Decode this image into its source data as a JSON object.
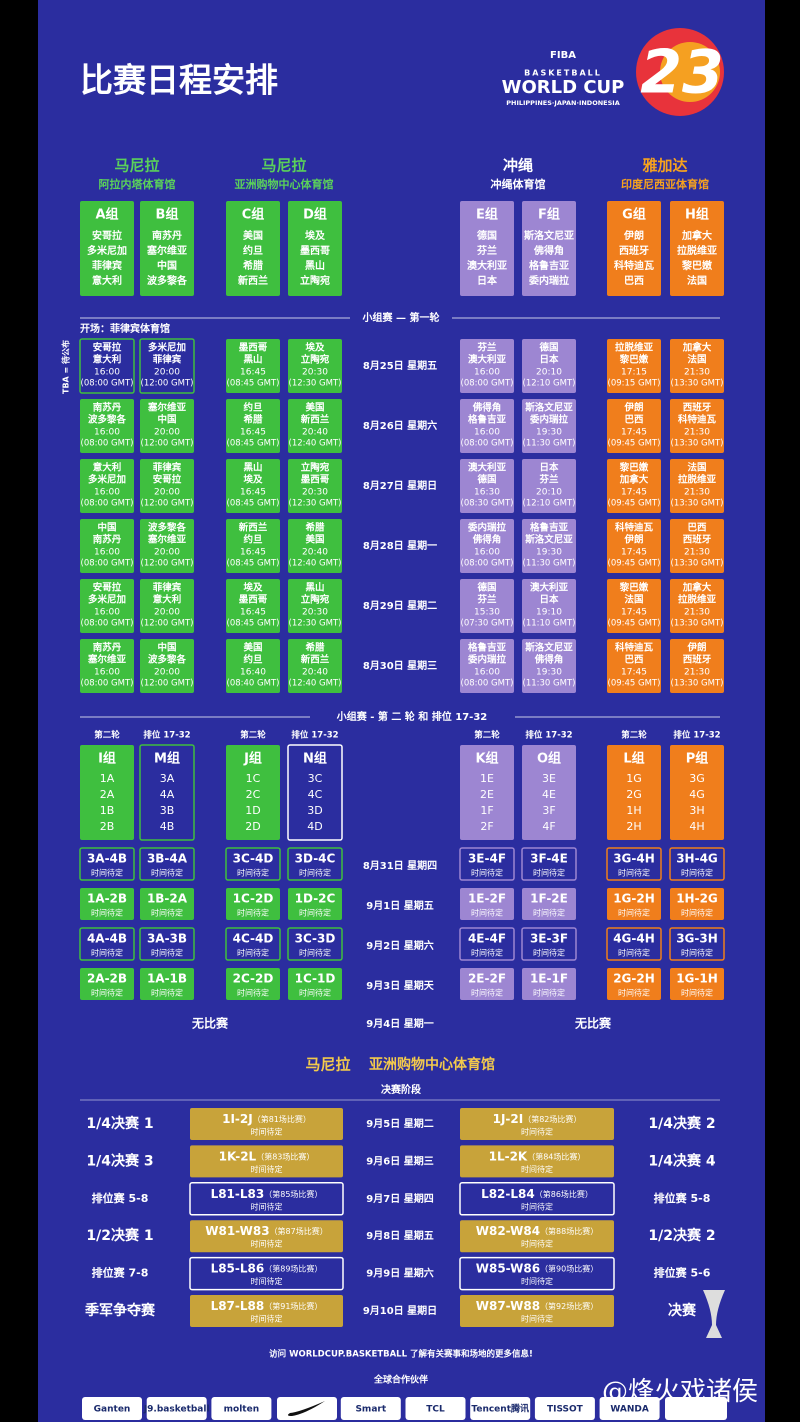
{
  "header": {
    "title": "比赛日程安排",
    "logo": {
      "brand": "FIBA",
      "line1": "BASKETBALL",
      "line2": "WORLD CUP",
      "line3": "PHILIPPINES·JAPAN·INDONESIA",
      "year": "23"
    }
  },
  "column_colors": [
    "#3fbf3f",
    "#3fbf3f",
    "#3fbf3f",
    "#3fbf3f",
    "#9d86d2",
    "#9d86d2",
    "#f07e1c",
    "#f07e1c"
  ],
  "venues": [
    {
      "city": "马尼拉",
      "arena": "阿拉内塔体育馆",
      "color": "#5ad15a"
    },
    {
      "city": "马尼拉",
      "arena": "亚洲购物中心体育馆",
      "color": "#5ad15a"
    },
    {
      "city": "冲绳",
      "arena": "冲绳体育馆",
      "color": "#ffffff"
    },
    {
      "city": "雅加达",
      "arena": "印度尼西亚体育馆",
      "color": "#f6a21e"
    }
  ],
  "groups": [
    {
      "name": "A组",
      "teams": [
        "安哥拉",
        "多米尼加",
        "菲律宾",
        "意大利"
      ]
    },
    {
      "name": "B组",
      "teams": [
        "南苏丹",
        "塞尔维亚",
        "中国",
        "波多黎各"
      ]
    },
    {
      "name": "C组",
      "teams": [
        "美国",
        "约旦",
        "希腊",
        "新西兰"
      ]
    },
    {
      "name": "D组",
      "teams": [
        "埃及",
        "墨西哥",
        "黑山",
        "立陶宛"
      ]
    },
    {
      "name": "E组",
      "teams": [
        "德国",
        "芬兰",
        "澳大利亚",
        "日本"
      ]
    },
    {
      "name": "F组",
      "teams": [
        "斯洛文尼亚",
        "佛得角",
        "格鲁吉亚",
        "委内瑞拉"
      ]
    },
    {
      "name": "G组",
      "teams": [
        "伊朗",
        "西班牙",
        "科特迪瓦",
        "巴西"
      ]
    },
    {
      "name": "H组",
      "teams": [
        "加拿大",
        "拉脱维亚",
        "黎巴嫩",
        "法国"
      ]
    }
  ],
  "round1": {
    "title": "小组赛 — 第一轮",
    "opening": "开场：菲律宾体育馆",
    "tba_note": "TBA = 待公布",
    "days": [
      {
        "date": "8月25日 星期五",
        "games": [
          {
            "teams": [
              "安哥拉",
              "意大利"
            ],
            "time": "16:00",
            "gmt": "(08:00 GMT)",
            "outlined": true
          },
          {
            "teams": [
              "多米尼加",
              "菲律宾"
            ],
            "time": "20:00",
            "gmt": "(12:00 GMT)",
            "outlined": true
          },
          {
            "teams": [
              "墨西哥",
              "黑山"
            ],
            "time": "16:45",
            "gmt": "(08:45 GMT)"
          },
          {
            "teams": [
              "埃及",
              "立陶宛"
            ],
            "time": "20:30",
            "gmt": "(12:30 GMT)"
          },
          {
            "teams": [
              "芬兰",
              "澳大利亚"
            ],
            "time": "16:00",
            "gmt": "(08:00 GMT)"
          },
          {
            "teams": [
              "德国",
              "日本"
            ],
            "time": "20:10",
            "gmt": "(12:10 GMT)"
          },
          {
            "teams": [
              "拉脱维亚",
              "黎巴嫩"
            ],
            "time": "17:15",
            "gmt": "(09:15 GMT)"
          },
          {
            "teams": [
              "加拿大",
              "法国"
            ],
            "time": "21:30",
            "gmt": "(13:30 GMT)"
          }
        ]
      },
      {
        "date": "8月26日 星期六",
        "games": [
          {
            "teams": [
              "南苏丹",
              "波多黎各"
            ],
            "time": "16:00",
            "gmt": "(08:00 GMT)"
          },
          {
            "teams": [
              "塞尔维亚",
              "中国"
            ],
            "time": "20:00",
            "gmt": "(12:00 GMT)"
          },
          {
            "teams": [
              "约旦",
              "希腊"
            ],
            "time": "16:45",
            "gmt": "(08:45 GMT)"
          },
          {
            "teams": [
              "美国",
              "新西兰"
            ],
            "time": "20:40",
            "gmt": "(12:40 GMT)"
          },
          {
            "teams": [
              "佛得角",
              "格鲁吉亚"
            ],
            "time": "16:00",
            "gmt": "(08:00 GMT)"
          },
          {
            "teams": [
              "斯洛文尼亚",
              "委内瑞拉"
            ],
            "time": "19:30",
            "gmt": "(11:30 GMT)"
          },
          {
            "teams": [
              "伊朗",
              "巴西"
            ],
            "time": "17:45",
            "gmt": "(09:45 GMT)"
          },
          {
            "teams": [
              "西班牙",
              "科特迪瓦"
            ],
            "time": "21:30",
            "gmt": "(13:30 GMT)"
          }
        ]
      },
      {
        "date": "8月27日 星期日",
        "games": [
          {
            "teams": [
              "意大利",
              "多米尼加"
            ],
            "time": "16:00",
            "gmt": "(08:00 GMT)"
          },
          {
            "teams": [
              "菲律宾",
              "安哥拉"
            ],
            "time": "20:00",
            "gmt": "(12:00 GMT)"
          },
          {
            "teams": [
              "黑山",
              "埃及"
            ],
            "time": "16:45",
            "gmt": "(08:45 GMT)"
          },
          {
            "teams": [
              "立陶宛",
              "墨西哥"
            ],
            "time": "20:30",
            "gmt": "(12:30 GMT)"
          },
          {
            "teams": [
              "澳大利亚",
              "德国"
            ],
            "time": "16:30",
            "gmt": "(08:30 GMT)"
          },
          {
            "teams": [
              "日本",
              "芬兰"
            ],
            "time": "20:10",
            "gmt": "(12:10 GMT)"
          },
          {
            "teams": [
              "黎巴嫩",
              "加拿大"
            ],
            "time": "17:45",
            "gmt": "(09:45 GMT)"
          },
          {
            "teams": [
              "法国",
              "拉脱维亚"
            ],
            "time": "21:30",
            "gmt": "(13:30 GMT)"
          }
        ]
      },
      {
        "date": "8月28日 星期一",
        "games": [
          {
            "teams": [
              "中国",
              "南苏丹"
            ],
            "time": "16:00",
            "gmt": "(08:00 GMT)"
          },
          {
            "teams": [
              "波多黎各",
              "塞尔维亚"
            ],
            "time": "20:00",
            "gmt": "(12:00 GMT)"
          },
          {
            "teams": [
              "新西兰",
              "约旦"
            ],
            "time": "16:45",
            "gmt": "(08:45 GMT)"
          },
          {
            "teams": [
              "希腊",
              "美国"
            ],
            "time": "20:40",
            "gmt": "(12:40 GMT)"
          },
          {
            "teams": [
              "委内瑞拉",
              "佛得角"
            ],
            "time": "16:00",
            "gmt": "(08:00 GMT)"
          },
          {
            "teams": [
              "格鲁吉亚",
              "斯洛文尼亚"
            ],
            "time": "19:30",
            "gmt": "(11:30 GMT)"
          },
          {
            "teams": [
              "科特迪瓦",
              "伊朗"
            ],
            "time": "17:45",
            "gmt": "(09:45 GMT)"
          },
          {
            "teams": [
              "巴西",
              "西班牙"
            ],
            "time": "21:30",
            "gmt": "(13:30 GMT)"
          }
        ]
      },
      {
        "date": "8月29日 星期二",
        "games": [
          {
            "teams": [
              "安哥拉",
              "多米尼加"
            ],
            "time": "16:00",
            "gmt": "(08:00 GMT)"
          },
          {
            "teams": [
              "菲律宾",
              "意大利"
            ],
            "time": "20:00",
            "gmt": "(12:00 GMT)"
          },
          {
            "teams": [
              "埃及",
              "墨西哥"
            ],
            "time": "16:45",
            "gmt": "(08:45 GMT)"
          },
          {
            "teams": [
              "黑山",
              "立陶宛"
            ],
            "time": "20:30",
            "gmt": "(12:30 GMT)"
          },
          {
            "teams": [
              "德国",
              "芬兰"
            ],
            "time": "15:30",
            "gmt": "(07:30 GMT)"
          },
          {
            "teams": [
              "澳大利亚",
              "日本"
            ],
            "time": "19:10",
            "gmt": "(11:10 GMT)"
          },
          {
            "teams": [
              "黎巴嫩",
              "法国"
            ],
            "time": "17:45",
            "gmt": "(09:45 GMT)"
          },
          {
            "teams": [
              "加拿大",
              "拉脱维亚"
            ],
            "time": "21:30",
            "gmt": "(13:30 GMT)"
          }
        ]
      },
      {
        "date": "8月30日 星期三",
        "games": [
          {
            "teams": [
              "南苏丹",
              "塞尔维亚"
            ],
            "time": "16:00",
            "gmt": "(08:00 GMT)"
          },
          {
            "teams": [
              "中国",
              "波多黎各"
            ],
            "time": "20:00",
            "gmt": "(12:00 GMT)"
          },
          {
            "teams": [
              "美国",
              "约旦"
            ],
            "time": "16:40",
            "gmt": "(08:40 GMT)"
          },
          {
            "teams": [
              "希腊",
              "新西兰"
            ],
            "time": "20:40",
            "gmt": "(12:40 GMT)"
          },
          {
            "teams": [
              "格鲁吉亚",
              "委内瑞拉"
            ],
            "time": "16:00",
            "gmt": "(08:00 GMT)"
          },
          {
            "teams": [
              "斯洛文尼亚",
              "佛得角"
            ],
            "time": "19:30",
            "gmt": "(11:30 GMT)"
          },
          {
            "teams": [
              "科特迪瓦",
              "巴西"
            ],
            "time": "17:45",
            "gmt": "(09:45 GMT)"
          },
          {
            "teams": [
              "伊朗",
              "西班牙"
            ],
            "time": "21:30",
            "gmt": "(13:30 GMT)"
          }
        ]
      }
    ]
  },
  "round2": {
    "title": "小组赛 - 第 二 轮 和 排位 17-32",
    "groups": [
      {
        "label": "第二轮",
        "name": "I组",
        "entries": [
          "1A",
          "2A",
          "1B",
          "2B"
        ]
      },
      {
        "label": "排位 17-32",
        "name": "M组",
        "entries": [
          "3A",
          "4A",
          "3B",
          "4B"
        ],
        "outlined": true
      },
      {
        "label": "第二轮",
        "name": "J组",
        "entries": [
          "1C",
          "2C",
          "1D",
          "2D"
        ]
      },
      {
        "label": "排位 17-32",
        "name": "N组",
        "entries": [
          "3C",
          "4C",
          "3D",
          "4D"
        ],
        "outlined": true
      },
      {
        "label": "第二轮",
        "name": "K组",
        "entries": [
          "1E",
          "2E",
          "1F",
          "2F"
        ]
      },
      {
        "label": "排位 17-32",
        "name": "O组",
        "entries": [
          "3E",
          "4E",
          "3F",
          "4F"
        ]
      },
      {
        "label": "第二轮",
        "name": "L组",
        "entries": [
          "1G",
          "2G",
          "1H",
          "2H"
        ]
      },
      {
        "label": "排位 17-32",
        "name": "P组",
        "entries": [
          "3G",
          "4G",
          "3H",
          "4H"
        ]
      }
    ],
    "days": [
      {
        "date": "8月31日 星期四",
        "outlined": true,
        "games": [
          {
            "code": "3A-4B",
            "time": "时间待定"
          },
          {
            "code": "3B-4A",
            "time": "时间待定"
          },
          {
            "code": "3C-4D",
            "time": "时间待定"
          },
          {
            "code": "3D-4C",
            "time": "时间待定"
          },
          {
            "code": "3E-4F",
            "time": "时间待定"
          },
          {
            "code": "3F-4E",
            "time": "时间待定"
          },
          {
            "code": "3G-4H",
            "time": "时间待定"
          },
          {
            "code": "3H-4G",
            "time": "时间待定"
          }
        ]
      },
      {
        "date": "9月1日 星期五",
        "games": [
          {
            "code": "1A-2B",
            "time": "时间待定"
          },
          {
            "code": "1B-2A",
            "time": "时间待定"
          },
          {
            "code": "1C-2D",
            "time": "时间待定"
          },
          {
            "code": "1D-2C",
            "time": "时间待定"
          },
          {
            "code": "1E-2F",
            "time": "时间待定"
          },
          {
            "code": "1F-2E",
            "time": "时间待定"
          },
          {
            "code": "1G-2H",
            "time": "时间待定"
          },
          {
            "code": "1H-2G",
            "time": "时间待定"
          }
        ]
      },
      {
        "date": "9月2日 星期六",
        "outlined": true,
        "games": [
          {
            "code": "4A-4B",
            "time": "时间待定"
          },
          {
            "code": "3A-3B",
            "time": "时间待定"
          },
          {
            "code": "4C-4D",
            "time": "时间待定"
          },
          {
            "code": "3C-3D",
            "time": "时间待定"
          },
          {
            "code": "4E-4F",
            "time": "时间待定"
          },
          {
            "code": "3E-3F",
            "time": "时间待定"
          },
          {
            "code": "4G-4H",
            "time": "时间待定"
          },
          {
            "code": "3G-3H",
            "time": "时间待定"
          }
        ]
      },
      {
        "date": "9月3日 星期天",
        "games": [
          {
            "code": "2A-2B",
            "time": "时间待定"
          },
          {
            "code": "1A-1B",
            "time": "时间待定"
          },
          {
            "code": "2C-2D",
            "time": "时间待定"
          },
          {
            "code": "1C-1D",
            "time": "时间待定"
          },
          {
            "code": "2E-2F",
            "time": "时间待定"
          },
          {
            "code": "1E-1F",
            "time": "时间待定"
          },
          {
            "code": "2G-2H",
            "time": "时间待定"
          },
          {
            "code": "1G-1H",
            "time": "时间待定"
          }
        ]
      }
    ],
    "rest": {
      "left": "无比赛",
      "date": "9月4日 星期一",
      "right": "无比赛"
    }
  },
  "finals": {
    "city": "马尼拉",
    "arena": "亚洲购物中心体育馆",
    "stage": "决赛阶段",
    "rows": [
      {
        "date": "9月5日 星期二",
        "left": {
          "label": "1/4决赛 1",
          "code": "1I-2J",
          "match": "（第81场比赛）",
          "time": "时间待定"
        },
        "right": {
          "label": "1/4决赛 2",
          "code": "1J-2I",
          "match": "（第82场比赛）",
          "time": "时间待定"
        }
      },
      {
        "date": "9月6日 星期三",
        "left": {
          "label": "1/4决赛 3",
          "code": "1K-2L",
          "match": "（第83场比赛）",
          "time": "时间待定"
        },
        "right": {
          "label": "1/4决赛 4",
          "code": "1L-2K",
          "match": "（第84场比赛）",
          "time": "时间待定"
        }
      },
      {
        "date": "9月7日 星期四",
        "outlined": true,
        "left": {
          "label": "排位赛 5-8",
          "code": "L81-L83",
          "match": "（第85场比赛）",
          "time": "时间待定"
        },
        "right": {
          "label": "排位赛 5-8",
          "code": "L82-L84",
          "match": "（第86场比赛）",
          "time": "时间待定"
        }
      },
      {
        "date": "9月8日 星期五",
        "left": {
          "label": "1/2决赛 1",
          "code": "W81-W83",
          "match": "（第87场比赛）",
          "time": "时间待定"
        },
        "right": {
          "label": "1/2决赛 2",
          "code": "W82-W84",
          "match": "（第88场比赛）",
          "time": "时间待定"
        }
      },
      {
        "date": "9月9日 星期六",
        "outlined": true,
        "left": {
          "label": "排位赛 7-8",
          "code": "L85-L86",
          "match": "（第89场比赛）",
          "time": "时间待定"
        },
        "right": {
          "label": "排位赛 5-6",
          "code": "W85-W86",
          "match": "（第90场比赛）",
          "time": "时间待定"
        }
      },
      {
        "date": "9月10日 星期日",
        "left": {
          "label": "季军争夺赛",
          "code": "L87-L88",
          "match": "（第91场比赛）",
          "time": "时间待定"
        },
        "right": {
          "label": "决赛",
          "code": "W87-W88",
          "match": "（第92场比赛）",
          "time": "时间待定"
        }
      }
    ]
  },
  "footer": {
    "visit": "访问 WORLDCUP.BASKETBALL 了解有关赛事和场地的更多信息!",
    "partners_title": "全球合作伙伴",
    "partners": [
      "Ganten",
      "J9.basketball",
      "molten",
      "Smart",
      "TCL",
      "Tencent腾讯",
      "TISSOT",
      "WANDA"
    ],
    "watermark": "@烽火戏诸侯"
  }
}
